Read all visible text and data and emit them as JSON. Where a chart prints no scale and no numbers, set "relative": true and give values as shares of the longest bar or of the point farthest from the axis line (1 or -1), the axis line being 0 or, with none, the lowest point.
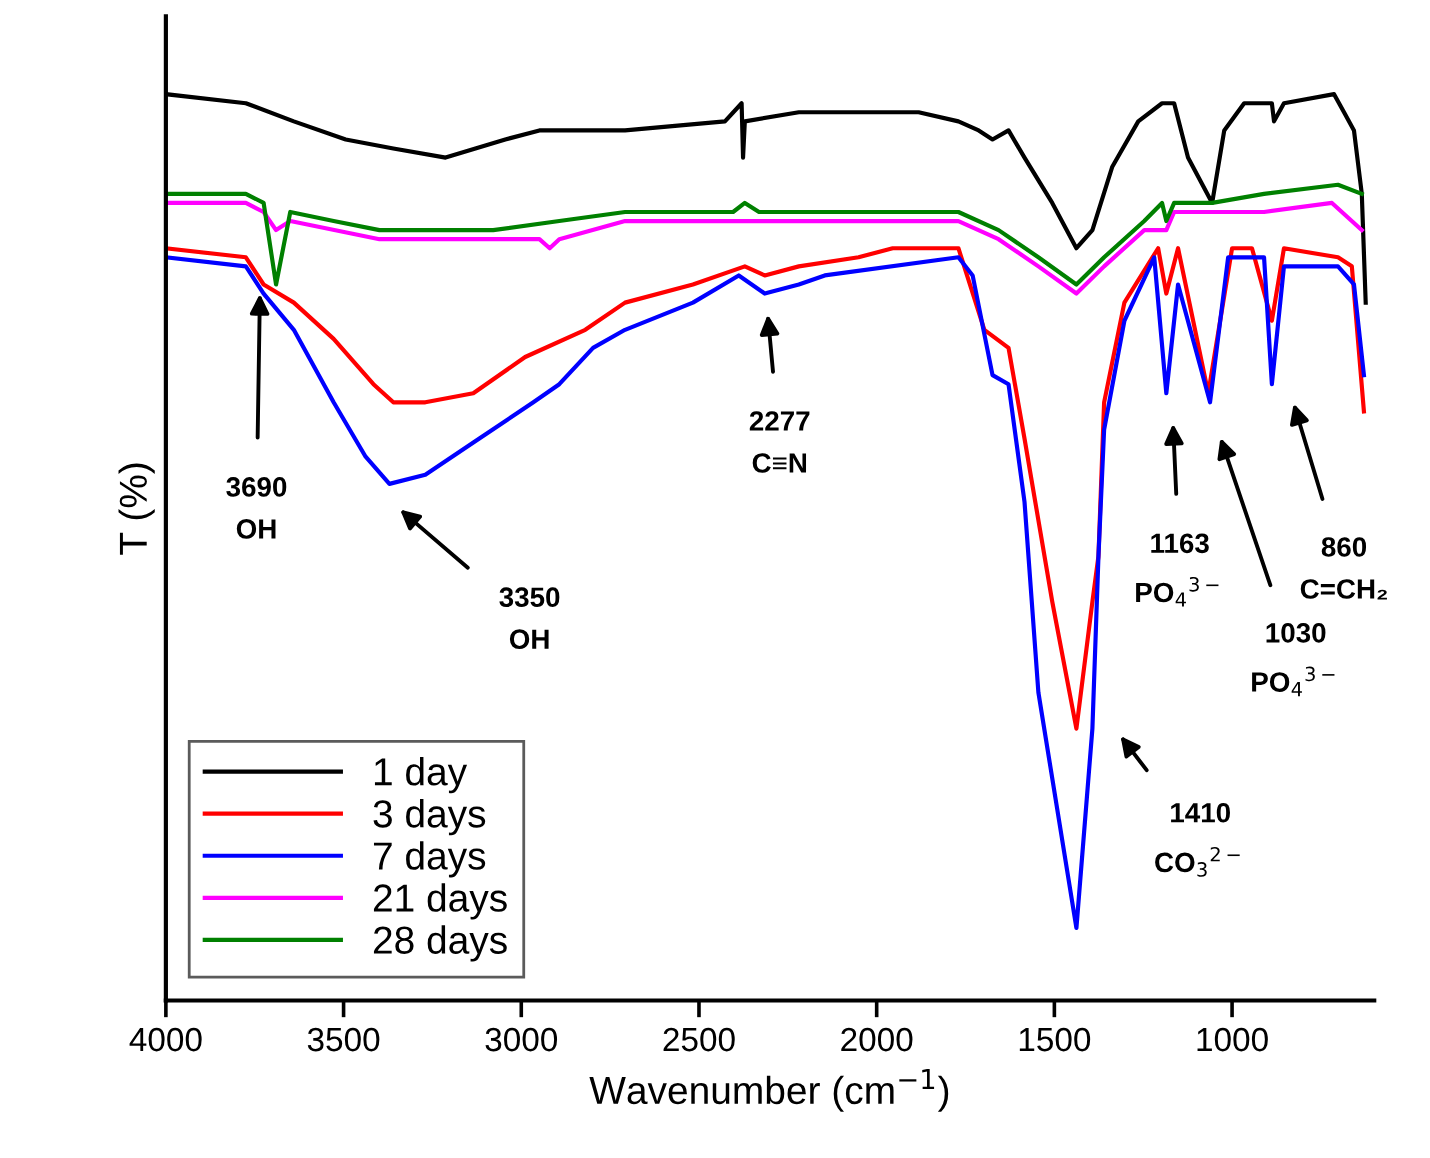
{
  "chart_data": {
    "type": "line",
    "relative": true,
    "xlabel": "Wavenumber (cm$^{−1}$)",
    "ylabel": "T (%)",
    "xlim": [
      4000,
      600
    ],
    "xticks": [
      4000,
      3500,
      3000,
      2500,
      2000,
      1500,
      1000
    ],
    "legend": "lower left",
    "grid": false,
    "marker": "none",
    "line_style": "solid",
    "series": [
      {
        "name": "1 day",
        "color": "#000000",
        "x": [
          4000,
          3775,
          3640,
          3494,
          3360,
          3213,
          3045,
          2949,
          2708,
          2427,
          2380,
          2376,
          2371,
          2219,
          1882,
          1770,
          1713,
          1674,
          1629,
          1584,
          1506,
          1438,
          1393,
          1337,
          1264,
          1197,
          1163,
          1124,
          1056,
          1022,
          966,
          888,
          882,
          854,
          713,
          685,
          657,
          635,
          624
        ],
        "values": [
          1.0,
          0.99,
          0.97,
          0.95,
          0.94,
          0.93,
          0.95,
          0.96,
          0.96,
          0.97,
          0.99,
          0.93,
          0.97,
          0.98,
          0.98,
          0.97,
          0.96,
          0.95,
          0.96,
          0.93,
          0.88,
          0.83,
          0.85,
          0.92,
          0.97,
          0.99,
          0.99,
          0.93,
          0.88,
          0.96,
          0.99,
          0.99,
          0.97,
          0.99,
          1.0,
          0.98,
          0.96,
          0.89,
          0.77
        ]
      },
      {
        "name": "3 days",
        "color": "#ff0000",
        "x": [
          4000,
          3775,
          3725,
          3640,
          3528,
          3416,
          3360,
          3270,
          3135,
          2989,
          2820,
          2708,
          2517,
          2371,
          2315,
          2219,
          2051,
          1955,
          1770,
          1697,
          1629,
          1584,
          1506,
          1438,
          1393,
          1376,
          1360,
          1303,
          1208,
          1185,
          1152,
          1067,
          1000,
          944,
          888,
          854,
          702,
          663,
          629
        ],
        "values": [
          0.83,
          0.82,
          0.79,
          0.77,
          0.73,
          0.68,
          0.66,
          0.66,
          0.67,
          0.71,
          0.74,
          0.77,
          0.79,
          0.81,
          0.8,
          0.81,
          0.82,
          0.83,
          0.83,
          0.74,
          0.72,
          0.62,
          0.44,
          0.3,
          0.44,
          0.49,
          0.66,
          0.77,
          0.83,
          0.78,
          0.83,
          0.67,
          0.83,
          0.83,
          0.75,
          0.83,
          0.82,
          0.81,
          0.65
        ]
      },
      {
        "name": "7 days",
        "color": "#0000ff",
        "x": [
          4000,
          3775,
          3725,
          3640,
          3528,
          3438,
          3371,
          3270,
          3118,
          2966,
          2893,
          2798,
          2708,
          2517,
          2388,
          2315,
          2219,
          2146,
          1770,
          1730,
          1674,
          1629,
          1584,
          1545,
          1438,
          1393,
          1376,
          1360,
          1303,
          1219,
          1185,
          1152,
          1062,
          1011,
          910,
          888,
          854,
          702,
          657,
          629
        ],
        "values": [
          0.82,
          0.81,
          0.78,
          0.74,
          0.66,
          0.6,
          0.57,
          0.58,
          0.62,
          0.66,
          0.68,
          0.72,
          0.74,
          0.77,
          0.8,
          0.78,
          0.79,
          0.8,
          0.82,
          0.8,
          0.69,
          0.68,
          0.55,
          0.34,
          0.08,
          0.3,
          0.49,
          0.63,
          0.75,
          0.82,
          0.67,
          0.79,
          0.66,
          0.82,
          0.82,
          0.68,
          0.81,
          0.81,
          0.79,
          0.69
        ]
      },
      {
        "name": "21 days",
        "color": "#ff00ff",
        "x": [
          4000,
          3775,
          3725,
          3690,
          3650,
          3399,
          2949,
          2920,
          2893,
          2708,
          2219,
          1770,
          1657,
          1545,
          1438,
          1360,
          1247,
          1185,
          1163,
          1056,
          910,
          719,
          635
        ],
        "values": [
          0.88,
          0.88,
          0.87,
          0.85,
          0.86,
          0.84,
          0.84,
          0.83,
          0.84,
          0.86,
          0.86,
          0.86,
          0.84,
          0.81,
          0.78,
          0.81,
          0.85,
          0.85,
          0.87,
          0.87,
          0.87,
          0.88,
          0.85
        ]
      },
      {
        "name": "28 days",
        "color": "#008000",
        "x": [
          4000,
          3775,
          3725,
          3690,
          3650,
          3528,
          3399,
          3079,
          2893,
          2708,
          2404,
          2371,
          2331,
          2219,
          1770,
          1657,
          1545,
          1438,
          1360,
          1247,
          1197,
          1185,
          1163,
          1056,
          910,
          702,
          635
        ],
        "values": [
          0.89,
          0.89,
          0.88,
          0.79,
          0.87,
          0.86,
          0.85,
          0.85,
          0.86,
          0.87,
          0.87,
          0.88,
          0.87,
          0.87,
          0.87,
          0.85,
          0.82,
          0.79,
          0.82,
          0.86,
          0.88,
          0.86,
          0.88,
          0.88,
          0.89,
          0.9,
          0.89
        ]
      }
    ],
    "annotations": [
      "3690\nOH",
      "3350\nOH",
      "2277\nC≡N",
      "1163\nPO$_{4}$$^{3−}$",
      "1030\nPO$_{4}$$^{3−}$",
      "860\nC=CH₂",
      "1410\nCO$_{3}$$^{2−}$"
    ]
  }
}
